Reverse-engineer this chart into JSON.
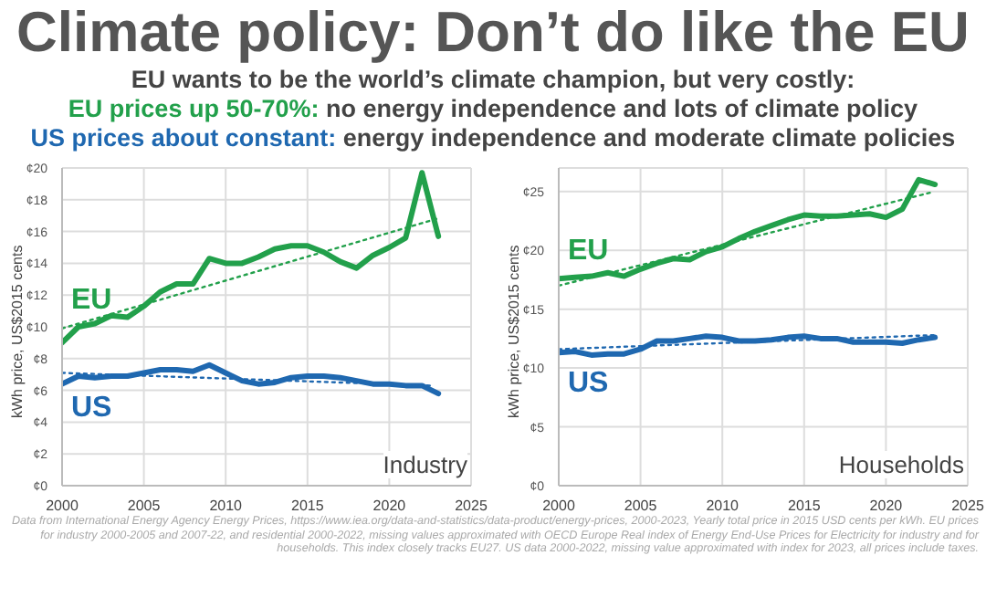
{
  "chart_data": [
    {
      "type": "line",
      "title": "Climate policy: Don’t do like the EU",
      "subtitle": "EU wants to be the world’s climate champion, but very costly:",
      "annotations": [
        "Industry",
        "EU prices up 50-70%: no energy independence and lots of climate policy",
        "US prices about constant: energy independence and moderate climate policies",
        "Data from International Energy Agency Energy Prices, https://www.iea.org/data-and-statistics/data-product/energy-prices, 2000-2023, Yearly total price in 2015 USD cents per kWh. EU prices for industry 2000-2005 and 2007-22, and residential 2000-2022, missing values approximated with OECD Europe Real index of Energy End-Use Prices for Electricity for industry and for households. This index closely tracks EU27. US data 2000-2022, missing value approximated with index for 2023, all prices include taxes."
      ],
      "ylabel": "kWh price, US$2015 cents",
      "x": [
        2000,
        2001,
        2002,
        2003,
        2004,
        2005,
        2006,
        2007,
        2008,
        2009,
        2010,
        2011,
        2012,
        2013,
        2014,
        2015,
        2016,
        2017,
        2018,
        2019,
        2020,
        2021,
        2022,
        2023
      ],
      "series": [
        {
          "name": "EU",
          "color": "#22a04b",
          "values": [
            9.0,
            10.0,
            10.2,
            10.7,
            10.6,
            11.3,
            12.2,
            12.7,
            12.7,
            14.3,
            14.0,
            14.0,
            14.4,
            14.9,
            15.1,
            15.1,
            14.7,
            14.1,
            13.7,
            14.5,
            15.0,
            15.6,
            19.7,
            15.7
          ]
        },
        {
          "name": "US",
          "color": "#1f68b0",
          "values": [
            6.4,
            6.9,
            6.8,
            6.9,
            6.9,
            7.1,
            7.3,
            7.3,
            7.2,
            7.6,
            7.1,
            6.6,
            6.4,
            6.5,
            6.8,
            6.9,
            6.9,
            6.8,
            6.6,
            6.4,
            6.4,
            6.3,
            6.3,
            5.8
          ]
        },
        {
          "type": "line",
          "line_style": "dotted",
          "color": "#22a04b",
          "x": [
            2000,
            2022.9
          ],
          "values": [
            9.9,
            16.8
          ]
        },
        {
          "type": "line",
          "line_style": "dotted",
          "color": "#1f68b0",
          "x": [
            2000,
            2022.5
          ],
          "values": [
            7.1,
            6.3
          ]
        }
      ],
      "xlim": [
        2000,
        2025
      ],
      "xticks": [
        2000,
        2005,
        2010,
        2015,
        2020,
        2025
      ],
      "ylim": [
        0,
        20
      ],
      "yticks": [
        {
          "value": 0,
          "label": "¢0"
        },
        {
          "value": 2,
          "label": "¢2"
        },
        {
          "value": 4,
          "label": "¢4"
        },
        {
          "value": 6,
          "label": "¢6"
        },
        {
          "value": 8,
          "label": "¢8"
        },
        {
          "value": 10,
          "label": "¢10"
        },
        {
          "value": 12,
          "label": "¢12"
        },
        {
          "value": 14,
          "label": "¢14"
        },
        {
          "value": 16,
          "label": "¢16"
        },
        {
          "value": 18,
          "label": "¢18"
        },
        {
          "value": 20,
          "label": "¢20"
        }
      ],
      "grid": true,
      "legend": false,
      "marker": "none",
      "line_style": "solid"
    },
    {
      "type": "line",
      "annotations": [
        "Households"
      ],
      "ylabel": "kWh price, US$2015 cents",
      "x": [
        2000,
        2001,
        2002,
        2003,
        2004,
        2005,
        2006,
        2007,
        2008,
        2009,
        2010,
        2011,
        2012,
        2013,
        2014,
        2015,
        2016,
        2017,
        2018,
        2019,
        2020,
        2021,
        2022,
        2023
      ],
      "series": [
        {
          "name": "EU",
          "color": "#22a04b",
          "values": [
            17.6,
            17.7,
            17.8,
            18.1,
            17.8,
            18.4,
            18.9,
            19.3,
            19.2,
            19.9,
            20.3,
            21.0,
            21.6,
            22.1,
            22.6,
            23.0,
            22.9,
            22.9,
            23.0,
            23.1,
            22.8,
            23.5,
            26.0,
            25.6
          ]
        },
        {
          "name": "US",
          "color": "#1f68b0",
          "values": [
            11.3,
            11.4,
            11.1,
            11.2,
            11.2,
            11.6,
            12.3,
            12.3,
            12.5,
            12.7,
            12.6,
            12.3,
            12.3,
            12.4,
            12.6,
            12.7,
            12.5,
            12.5,
            12.2,
            12.2,
            12.2,
            12.1,
            12.4,
            12.6
          ]
        },
        {
          "type": "line",
          "line_style": "dotted",
          "color": "#22a04b",
          "x": [
            2000,
            2022.7
          ],
          "values": [
            17.0,
            24.9
          ]
        },
        {
          "type": "line",
          "line_style": "dotted",
          "color": "#1f68b0",
          "x": [
            2000,
            2023
          ],
          "values": [
            11.6,
            12.8
          ]
        }
      ],
      "xlim": [
        2000,
        2025
      ],
      "xticks": [
        2000,
        2005,
        2010,
        2015,
        2020,
        2025
      ],
      "ylim": [
        0,
        27
      ],
      "yticks": [
        {
          "value": 0,
          "label": "¢0"
        },
        {
          "value": 5,
          "label": "¢5"
        },
        {
          "value": 10,
          "label": "¢10"
        },
        {
          "value": 15,
          "label": "¢15"
        },
        {
          "value": 20,
          "label": "¢20"
        },
        {
          "value": 25,
          "label": "¢25"
        }
      ],
      "grid": true,
      "legend": false,
      "marker": "none",
      "line_style": "solid"
    }
  ]
}
